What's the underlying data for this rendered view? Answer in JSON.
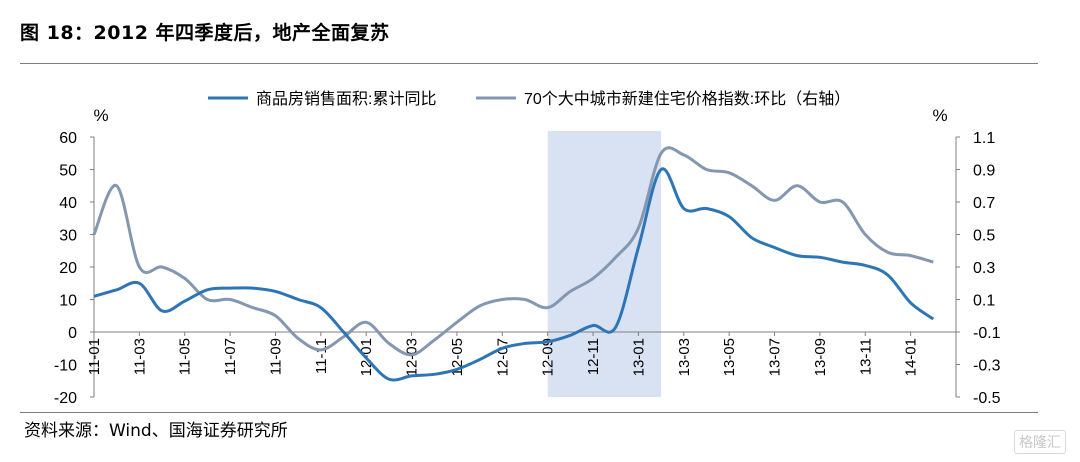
{
  "page": {
    "title": "图 18：2012 年四季度后，地产全面复苏",
    "source": "资料来源：Wind、国海证券研究所",
    "watermark": "格隆汇"
  },
  "chart_data": {
    "type": "line",
    "left_unit": "%",
    "right_unit": "%",
    "left_axis": {
      "min": -20,
      "max": 60,
      "ticks": [
        60,
        50,
        40,
        30,
        20,
        10,
        0,
        -10,
        -20
      ]
    },
    "right_axis": {
      "min": -0.5,
      "max": 1.1,
      "ticks": [
        1.1,
        0.9,
        0.7,
        0.5,
        0.3,
        0.1,
        -0.1,
        -0.3,
        -0.5
      ]
    },
    "x_months": [
      "2011-01",
      "2014-03"
    ],
    "x_tick_labels": [
      "11-01",
      "11-03",
      "11-05",
      "11-07",
      "11-09",
      "11-11",
      "12-01",
      "12-03",
      "12-05",
      "12-07",
      "12-09",
      "12-11",
      "13-01",
      "13-03",
      "13-05",
      "13-07",
      "13-09",
      "13-11",
      "14-01"
    ],
    "x_tick_months": [
      "2011-01",
      "2011-03",
      "2011-05",
      "2011-07",
      "2011-09",
      "2011-11",
      "2012-01",
      "2012-03",
      "2012-05",
      "2012-07",
      "2012-09",
      "2012-11",
      "2013-01",
      "2013-03",
      "2013-05",
      "2013-07",
      "2013-09",
      "2013-11",
      "2014-01"
    ],
    "shade_band": {
      "from": "2012-09",
      "to": "2013-02",
      "color": "#d9e2f3"
    },
    "legend_position": "top",
    "series": [
      {
        "name": "商品房销售面积:累计同比",
        "axis": "left",
        "color": "#2e75b6",
        "points": [
          [
            "2011-01",
            11
          ],
          [
            "2011-02",
            13
          ],
          [
            "2011-03",
            15
          ],
          [
            "2011-04",
            6.5
          ],
          [
            "2011-05",
            9.5
          ],
          [
            "2011-06",
            13
          ],
          [
            "2011-07",
            13.5
          ],
          [
            "2011-08",
            13.5
          ],
          [
            "2011-09",
            12.5
          ],
          [
            "2011-10",
            10
          ],
          [
            "2011-11",
            7.5
          ],
          [
            "2011-12",
            0
          ],
          [
            "2012-01",
            -8
          ],
          [
            "2012-02",
            -14.5
          ],
          [
            "2012-03",
            -13.5
          ],
          [
            "2012-04",
            -13
          ],
          [
            "2012-05",
            -11.5
          ],
          [
            "2012-06",
            -8.5
          ],
          [
            "2012-07",
            -5
          ],
          [
            "2012-08",
            -3.5
          ],
          [
            "2012-09",
            -3
          ],
          [
            "2012-10",
            -1
          ],
          [
            "2012-11",
            2
          ],
          [
            "2012-12",
            1.5
          ],
          [
            "2013-01",
            26
          ],
          [
            "2013-02",
            50
          ],
          [
            "2013-03",
            38
          ],
          [
            "2013-04",
            38
          ],
          [
            "2013-05",
            35.5
          ],
          [
            "2013-06",
            29
          ],
          [
            "2013-07",
            26
          ],
          [
            "2013-08",
            23.5
          ],
          [
            "2013-09",
            23
          ],
          [
            "2013-10",
            21.5
          ],
          [
            "2013-11",
            20.5
          ],
          [
            "2013-12",
            17.5
          ],
          [
            "2014-01",
            9
          ],
          [
            "2014-02",
            4
          ]
        ]
      },
      {
        "name": "70个大中城市新建住宅价格指数:环比（右轴）",
        "axis": "right",
        "color": "#8497b0",
        "points": [
          [
            "2011-01",
            0.5
          ],
          [
            "2011-02",
            0.8
          ],
          [
            "2011-03",
            0.3
          ],
          [
            "2011-04",
            0.3
          ],
          [
            "2011-05",
            0.23
          ],
          [
            "2011-06",
            0.1
          ],
          [
            "2011-07",
            0.1
          ],
          [
            "2011-08",
            0.05
          ],
          [
            "2011-09",
            0.0
          ],
          [
            "2011-10",
            -0.14
          ],
          [
            "2011-11",
            -0.21
          ],
          [
            "2011-12",
            -0.13
          ],
          [
            "2012-01",
            -0.04
          ],
          [
            "2012-02",
            -0.17
          ],
          [
            "2012-03",
            -0.24
          ],
          [
            "2012-04",
            -0.15
          ],
          [
            "2012-05",
            -0.04
          ],
          [
            "2012-06",
            0.06
          ],
          [
            "2012-07",
            0.1
          ],
          [
            "2012-08",
            0.1
          ],
          [
            "2012-09",
            0.05
          ],
          [
            "2012-10",
            0.15
          ],
          [
            "2012-11",
            0.23
          ],
          [
            "2012-12",
            0.36
          ],
          [
            "2013-01",
            0.54
          ],
          [
            "2013-02",
            1.0
          ],
          [
            "2013-03",
            0.99
          ],
          [
            "2013-04",
            0.9
          ],
          [
            "2013-05",
            0.88
          ],
          [
            "2013-06",
            0.8
          ],
          [
            "2013-07",
            0.71
          ],
          [
            "2013-08",
            0.8
          ],
          [
            "2013-09",
            0.7
          ],
          [
            "2013-10",
            0.7
          ],
          [
            "2013-11",
            0.5
          ],
          [
            "2013-12",
            0.39
          ],
          [
            "2014-01",
            0.37
          ],
          [
            "2014-02",
            0.33
          ]
        ]
      }
    ]
  }
}
